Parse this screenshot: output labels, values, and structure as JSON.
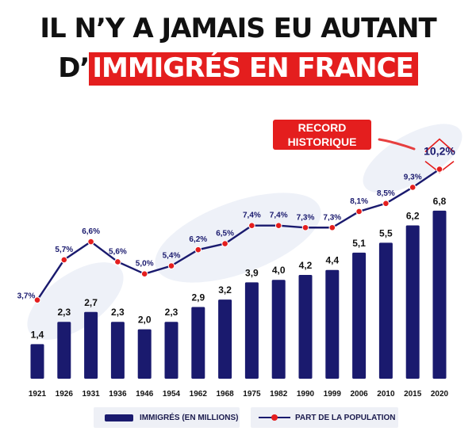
{
  "title": {
    "line1": "IL N’Y A JAMAIS EU AUTANT",
    "line2_prefix": "D’",
    "line2_highlight": "IMMIGRÉS EN FRANCE"
  },
  "badge": {
    "line1": "RECORD",
    "line2": "HISTORIQUE"
  },
  "colors": {
    "bar": "#1a1a6e",
    "line": "#1a1a6e",
    "marker": "#e41e1e",
    "highlight": "#e41e1e"
  },
  "chart_data": {
    "type": "bar",
    "categories": [
      "1921",
      "1926",
      "1931",
      "1936",
      "1946",
      "1954",
      "1962",
      "1968",
      "1975",
      "1982",
      "1990",
      "1999",
      "2006",
      "2010",
      "2015",
      "2020"
    ],
    "series": [
      {
        "name": "IMMIGRÉS (EN MILLIONS)",
        "type": "bar",
        "values": [
          1.4,
          2.3,
          2.7,
          2.3,
          2.0,
          2.3,
          2.9,
          3.2,
          3.9,
          4.0,
          4.2,
          4.4,
          5.1,
          5.5,
          6.2,
          6.8
        ],
        "labels": [
          "1,4",
          "2,3",
          "2,7",
          "2,3",
          "2,0",
          "2,3",
          "2,9",
          "3,2",
          "3,9",
          "4,0",
          "4,2",
          "4,4",
          "5,1",
          "5,5",
          "6,2",
          "6,8"
        ]
      },
      {
        "name": "PART DE LA POPULATION",
        "type": "line",
        "values": [
          3.7,
          5.7,
          6.6,
          5.6,
          5.0,
          5.4,
          6.2,
          6.5,
          7.4,
          7.4,
          7.3,
          7.3,
          8.1,
          8.5,
          9.3,
          10.2
        ],
        "labels": [
          "3,7%",
          "5,7%",
          "6,6%",
          "5,6%",
          "5,0%",
          "5,4%",
          "6,2%",
          "6,5%",
          "7,4%",
          "7,4%",
          "7,3%",
          "7,3%",
          "8,1%",
          "8,5%",
          "9,3%",
          "10,2%"
        ]
      }
    ],
    "legend_placement": "bottom",
    "grid": false
  }
}
